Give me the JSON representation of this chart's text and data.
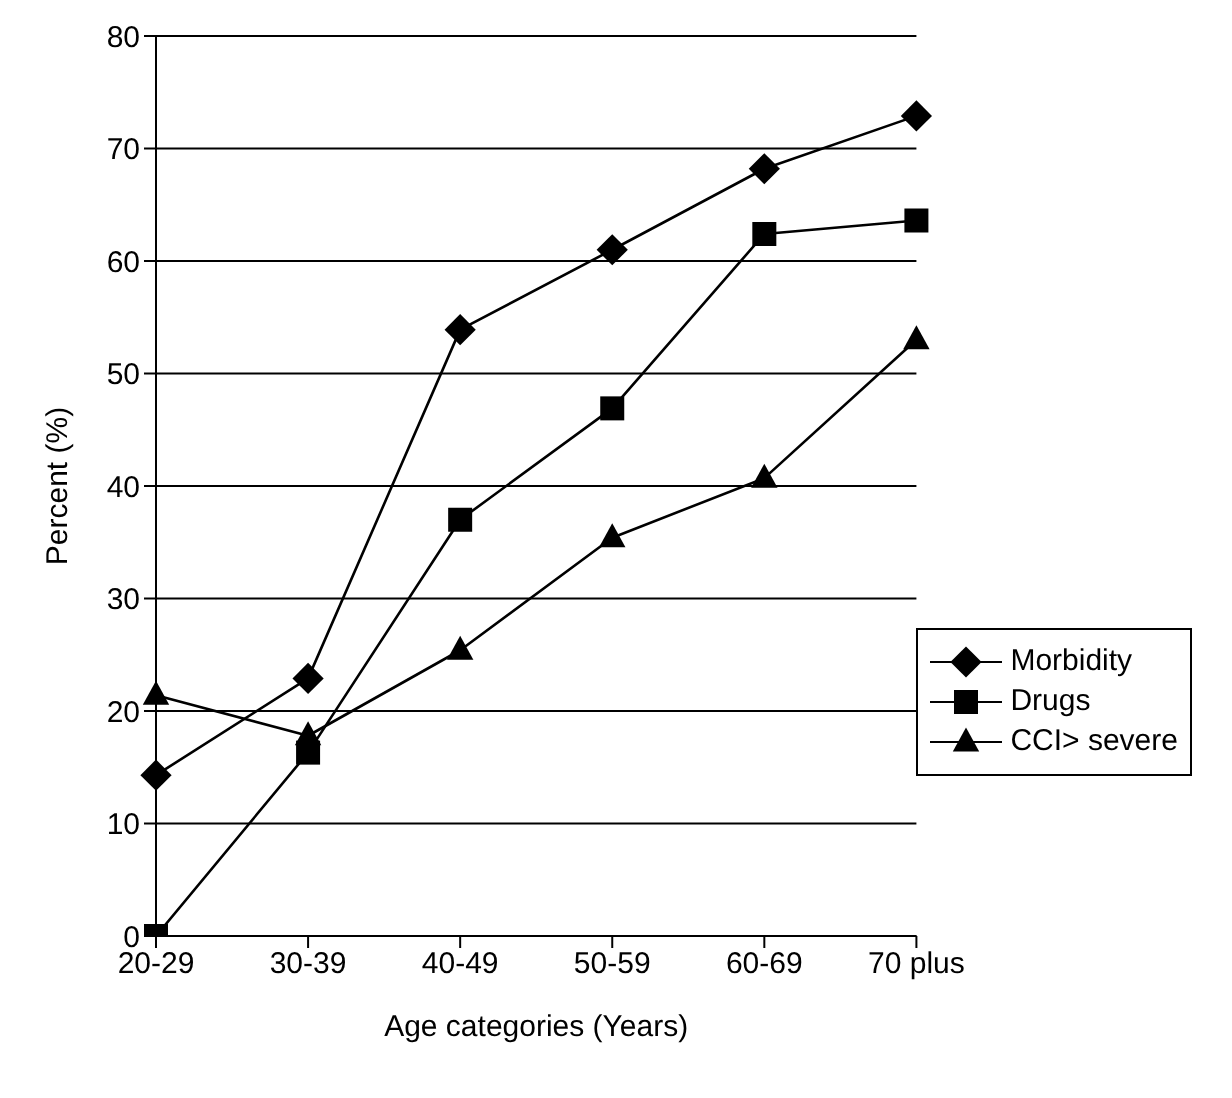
{
  "chart_data": {
    "type": "line",
    "xlabel": "Age categories (Years)",
    "ylabel": "Percent (%)",
    "categories": [
      "20-29",
      "30-39",
      "40-49",
      "50-59",
      "60-69",
      "70 plus"
    ],
    "series": [
      {
        "name": "Morbidity",
        "color": "#000000",
        "marker": "diamond",
        "values": [
          14.3,
          22.9,
          53.9,
          61.0,
          68.2,
          72.9
        ]
      },
      {
        "name": "Drugs",
        "color": "#000000",
        "marker": "square",
        "values": [
          0,
          16.3,
          37.0,
          46.9,
          62.4,
          63.6
        ]
      },
      {
        "name": "CCI> severe",
        "color": "#000000",
        "marker": "triangle",
        "values": [
          21.4,
          17.8,
          25.4,
          35.4,
          40.7,
          53.0
        ]
      }
    ],
    "ylim": [
      0,
      80
    ],
    "yticks": [
      0,
      10,
      20,
      30,
      40,
      50,
      60,
      70,
      80
    ],
    "grid": "y",
    "legend": "bottom right",
    "line_style": "solid"
  }
}
